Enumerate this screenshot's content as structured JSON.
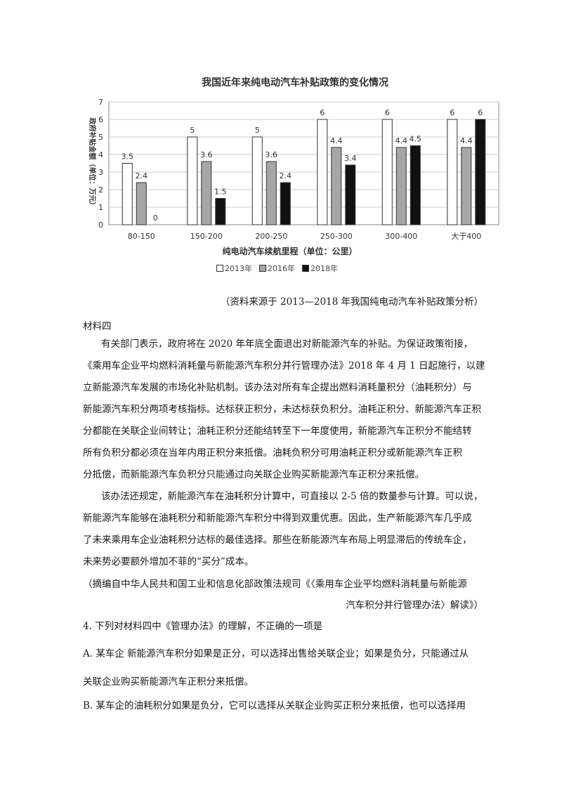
{
  "chart_data": {
    "type": "bar",
    "title": "我国近年来纯电动汽车补贴政策的变化情况",
    "xlabel": "纯电动汽车续航里程（单位：公里）",
    "ylabel": "政府补贴金额（单位：万元）",
    "ylim": [
      0,
      7
    ],
    "yticks": [
      "0",
      "1",
      "2",
      "3",
      "4",
      "5",
      "6",
      "7"
    ],
    "grid": true,
    "legend_position": "bottom",
    "categories": [
      "80-150",
      "150-200",
      "200-250",
      "250-300",
      "300-400",
      "大于400"
    ],
    "series": [
      {
        "name": "2013年",
        "values": [
          3.5,
          5,
          5,
          6,
          6,
          6
        ],
        "labels": [
          "3.5",
          "5",
          "5",
          "6",
          "6",
          "6"
        ],
        "color": "#ffffff"
      },
      {
        "name": "2016年",
        "values": [
          2.4,
          3.6,
          3.6,
          4.4,
          4.4,
          4.4
        ],
        "labels": [
          "2.4",
          "3.6",
          "3.6",
          "4.4",
          "4.4",
          "4.4"
        ],
        "color": "#a6a6a6"
      },
      {
        "name": "2018年",
        "values": [
          0,
          1.5,
          2.4,
          3.4,
          4.5,
          6
        ],
        "labels": [
          "0",
          "1.5",
          "2.4",
          "3.4",
          "4.5",
          "6"
        ],
        "color": "#111111"
      }
    ]
  },
  "source_note": "（资料来源于 2013—2018 年我国纯电动汽车补贴政策分析）",
  "material_label": "材料四",
  "paragraph1": [
    "有关部门表示，政府将在 2020 年年底全面退出对新能源汽车的补贴。为保证政策衔接，",
    "《乘用车企业平均燃料消耗量与新能源汽车积分并行管理办法》2018 年 4 月 1 日起施行，以建",
    "立新能源汽车发展的市场化补贴机制。该办法对所有车企提出燃料消耗量积分（油耗积分）与",
    "新能源汽车积分两项考核指标。达标获正积分，未达标获负积分。油耗正积分、新能源汽车正积",
    "分都能在关联企业间转让；油耗正积分还能结转至下一年度使用，新能源汽车正积分不能结转",
    "所有负积分都必须在当年内用正积分来抵偿。油耗负积分可用油耗正积分或新能源汽车正积",
    "分抵偿，而新能源汽车负积分只能通过向关联企业购买新能源汽车正积分来抵偿。"
  ],
  "paragraph2": [
    "该办法还规定，新能源汽车在油耗积分计算中，可直接以 2-5 倍的数量参与计算。可以说，",
    "新能源汽车能够在油耗积分和新能源汽车积分中得到双重优惠。因此，生产新能源汽车几乎成",
    "了未来乘用车企业油耗积分达标的最佳选择。那些在新能源汽车布局上明显滞后的传统车企，",
    "未来势必要额外增加不菲的“买分”成本。"
  ],
  "citation_line1": "（摘编自中华人民共和国工业和信息化部政策法规司《〈乘用车企业平均燃料消耗量与新能源",
  "citation_line2": "汽车积分并行管理办法〉解读》）",
  "question": "4.  下列对材料四中《管理办法》的理解，不正确的一项是",
  "option_a_line1": "A.  某车企    新能源汽车积分如果是正分，可以选择出售给关联企业；如果是负分，只能通过从",
  "option_a_line2": "关联企业购买新能源汽车正积分来抵偿。",
  "option_b_line1": "B.  某车企的油耗积分如果是负分，它可以选择从关联企业购买正积分来抵偿，也可以选择用"
}
